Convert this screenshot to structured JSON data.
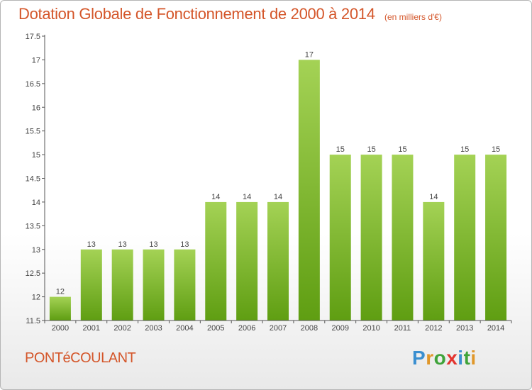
{
  "title": "Dotation Globale de Fonctionnement de 2000 à 2014",
  "unit_note": "(en milliers d'€)",
  "commune": "PONTéCOULANT",
  "logo": {
    "letters": [
      "P",
      "r",
      "o",
      "x",
      "i",
      "t",
      "i"
    ],
    "text": "Proxiti"
  },
  "colors": {
    "title": "#d4562a",
    "bar_light": "#a4d255",
    "bar_dark": "#5f9e12",
    "axis": "#555555",
    "grid": "#cccccc"
  },
  "chart_data": {
    "type": "bar",
    "title": "Dotation Globale de Fonctionnement de 2000 à 2014",
    "subtitle": "(en milliers d'€)",
    "xlabel": "",
    "ylabel": "",
    "categories": [
      "2000",
      "2001",
      "2002",
      "2003",
      "2004",
      "2005",
      "2006",
      "2007",
      "2008",
      "2009",
      "2010",
      "2011",
      "2012",
      "2013",
      "2014"
    ],
    "values": [
      12,
      13,
      13,
      13,
      13,
      14,
      14,
      14,
      17,
      15,
      15,
      15,
      14,
      15,
      15
    ],
    "data_labels": [
      "12",
      "13",
      "13",
      "13",
      "13",
      "14",
      "14",
      "14",
      "17",
      "15",
      "15",
      "15",
      "14",
      "15",
      "15"
    ],
    "ylim": [
      11.5,
      17.5
    ],
    "yticks": [
      11.5,
      12,
      12.5,
      13,
      13.5,
      14,
      14.5,
      15,
      15.5,
      16,
      16.5,
      17,
      17.5
    ],
    "ytick_labels": [
      "11.5",
      "12",
      "12.5",
      "13",
      "13.5",
      "14",
      "14.5",
      "15",
      "15.5",
      "16",
      "16.5",
      "17",
      "17.5"
    ]
  }
}
